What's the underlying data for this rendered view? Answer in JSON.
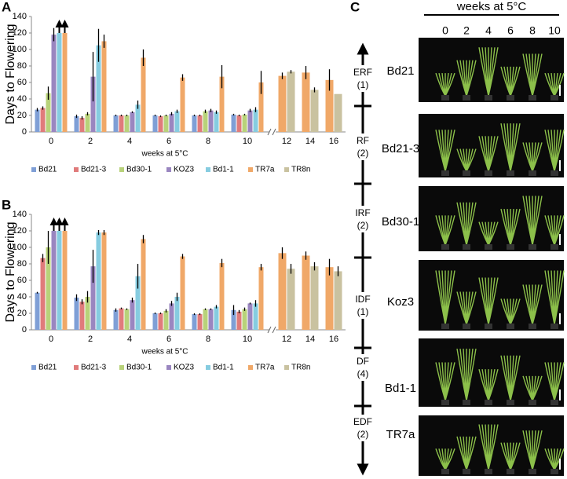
{
  "chart_data": [
    {
      "type": "bar",
      "panel": "A",
      "ylabel": "Days to Flowering",
      "xlabel": "weeks at 5°C",
      "categories": [
        "0",
        "2",
        "4",
        "6",
        "8",
        "10",
        "12",
        "14",
        "16"
      ],
      "ylim": [
        0,
        140
      ],
      "yticks": [
        0,
        20,
        40,
        60,
        80,
        100,
        120,
        140
      ],
      "series": [
        {
          "name": "Bd21",
          "color": "#7f9fd6",
          "values": [
            27,
            19,
            20,
            20,
            20,
            21,
            null,
            null,
            null
          ],
          "errors": [
            2,
            2,
            1,
            1,
            1,
            1,
            null,
            null,
            null
          ]
        },
        {
          "name": "Bd21-3",
          "color": "#e07b7b",
          "values": [
            29,
            17,
            20,
            19,
            20,
            20,
            null,
            null,
            null
          ],
          "errors": [
            2,
            2,
            1,
            1,
            1,
            1,
            null,
            null,
            null
          ]
        },
        {
          "name": "Bd30-1",
          "color": "#b8d27a",
          "values": [
            47,
            22,
            20,
            20,
            25,
            21,
            null,
            null,
            null
          ],
          "errors": [
            8,
            2,
            1,
            1,
            2,
            1,
            null,
            null,
            null
          ]
        },
        {
          "name": "KOZ3",
          "color": "#9a86c0",
          "values": [
            118,
            67,
            24,
            22,
            26,
            26,
            null,
            null,
            null
          ],
          "errors": [
            8,
            30,
            1,
            2,
            2,
            2,
            null,
            null,
            null
          ]
        },
        {
          "name": "Bd1-1",
          "color": "#86cce0",
          "values": [
            120,
            105,
            33,
            25,
            24,
            27,
            null,
            null,
            null
          ],
          "errors": [
            null,
            20,
            5,
            2,
            2,
            3,
            null,
            null,
            null
          ],
          "arrows": [
            0
          ]
        },
        {
          "name": "TR7a",
          "color": "#f0a868",
          "values": [
            120,
            110,
            90,
            66,
            67,
            60,
            68,
            72,
            63
          ],
          "errors": [
            null,
            8,
            10,
            4,
            14,
            14,
            4,
            8,
            13
          ],
          "arrows": [
            0
          ]
        },
        {
          "name": "TR8n",
          "color": "#c9c2a0",
          "values": [
            null,
            null,
            null,
            null,
            null,
            null,
            73,
            51,
            46
          ],
          "errors": [
            null,
            null,
            null,
            null,
            null,
            null,
            2,
            3,
            null
          ]
        }
      ]
    },
    {
      "type": "bar",
      "panel": "B",
      "ylabel": "Days to Flowering",
      "xlabel": "weeks at 5°C",
      "categories": [
        "0",
        "2",
        "4",
        "6",
        "8",
        "10",
        "12",
        "14",
        "16"
      ],
      "ylim": [
        0,
        140
      ],
      "yticks": [
        0,
        20,
        40,
        60,
        80,
        100,
        120,
        140
      ],
      "series": [
        {
          "name": "Bd21",
          "color": "#7f9fd6",
          "values": [
            45,
            39,
            24,
            20,
            19,
            24,
            null,
            null,
            null
          ],
          "errors": [
            1,
            4,
            2,
            1,
            1,
            6,
            null,
            null,
            null
          ]
        },
        {
          "name": "Bd21-3",
          "color": "#e07b7b",
          "values": [
            87,
            34,
            26,
            20,
            19,
            22,
            null,
            null,
            null
          ],
          "errors": [
            5,
            3,
            1,
            1,
            1,
            2,
            null,
            null,
            null
          ]
        },
        {
          "name": "Bd30-1",
          "color": "#b8d27a",
          "values": [
            100,
            40,
            25,
            23,
            25,
            25,
            null,
            null,
            null
          ],
          "errors": [
            20,
            7,
            1,
            2,
            1,
            2,
            null,
            null,
            null
          ]
        },
        {
          "name": "KOZ3",
          "color": "#9a86c0",
          "values": [
            120,
            77,
            36,
            32,
            25,
            32,
            null,
            null,
            null
          ],
          "errors": [
            null,
            20,
            3,
            3,
            1,
            1,
            null,
            null,
            null
          ],
          "arrows": [
            0
          ]
        },
        {
          "name": "Bd1-1",
          "color": "#86cce0",
          "values": [
            120,
            118,
            65,
            40,
            28,
            32,
            null,
            null,
            null
          ],
          "errors": [
            null,
            3,
            15,
            5,
            2,
            4,
            null,
            null,
            null
          ],
          "arrows": [
            0
          ]
        },
        {
          "name": "TR7a",
          "color": "#f0a868",
          "values": [
            120,
            118,
            110,
            89,
            81,
            76,
            93,
            90,
            76
          ],
          "errors": [
            null,
            3,
            5,
            3,
            5,
            4,
            7,
            5,
            10
          ],
          "arrows": [
            0
          ]
        },
        {
          "name": "TR8n",
          "color": "#c9c2a0",
          "values": [
            null,
            null,
            null,
            null,
            null,
            null,
            74,
            77,
            71
          ],
          "errors": [
            null,
            null,
            null,
            null,
            null,
            null,
            6,
            5,
            6
          ]
        }
      ]
    }
  ],
  "panel_c": {
    "panel": "C",
    "title": "weeks at 5°C",
    "weeks": [
      "0",
      "2",
      "4",
      "6",
      "8",
      "10"
    ],
    "rows": [
      {
        "group": "ERF",
        "count": "(1)",
        "line": "Bd21"
      },
      {
        "group": "RF",
        "count": "(2)",
        "line": "Bd21-3"
      },
      {
        "group": "IRF",
        "count": "(2)",
        "line": "Bd30-1"
      },
      {
        "group": "IDF",
        "count": "(1)",
        "line": "Koz3"
      },
      {
        "group": "DF",
        "count": "(4)",
        "line": "Bd1-1"
      },
      {
        "group": "EDF",
        "count": "(2)",
        "line": "TR7a"
      }
    ]
  }
}
